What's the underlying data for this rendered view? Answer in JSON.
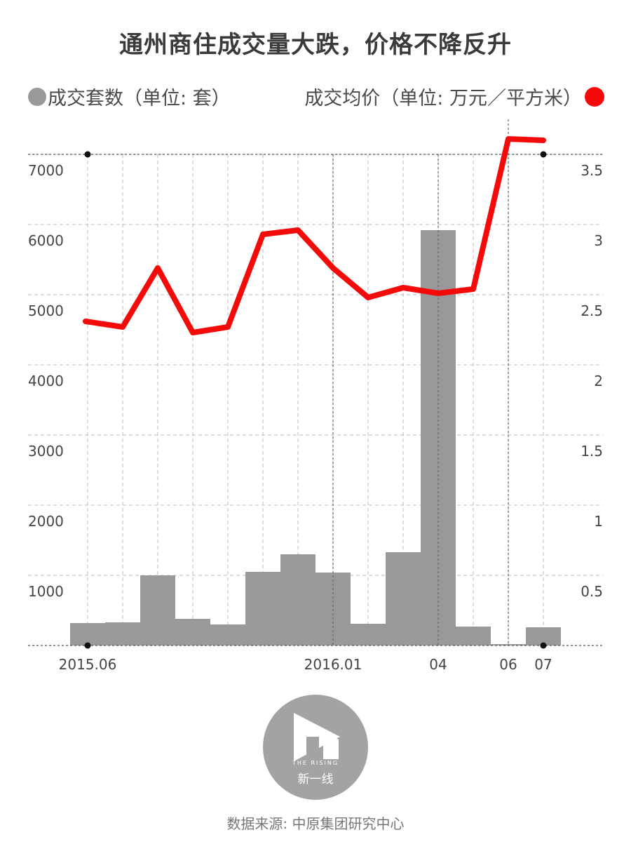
{
  "title": "通州商住成交量大跌，价格不降反升",
  "legend": {
    "left_label": "成交套数（单位: 套）",
    "right_label": "成交均价（单位: 万元／平方米）"
  },
  "colors": {
    "bar": "#999999",
    "line": "#f50a0a",
    "grid": "#bdbdbd"
  },
  "chart_data": {
    "type": "bar+line",
    "x_labels": [
      {
        "index": 0,
        "text": "2015.06"
      },
      {
        "index": 7,
        "text": "2016.01"
      },
      {
        "index": 10,
        "text": "04"
      },
      {
        "index": 12,
        "text": "06"
      },
      {
        "index": 13,
        "text": "07"
      }
    ],
    "y_left": {
      "min": 0,
      "max": 7000,
      "ticks": [
        1000,
        2000,
        3000,
        4000,
        5000,
        6000,
        7000
      ]
    },
    "y_right": {
      "min": 0,
      "max": 3.5,
      "ticks": [
        "0.5",
        "1",
        "1.5",
        "2",
        "2.5",
        "3",
        "3.5"
      ]
    },
    "bars": {
      "name": "成交套数",
      "values": [
        320,
        330,
        1000,
        380,
        300,
        1050,
        1300,
        1040,
        310,
        1330,
        5920,
        270,
        20,
        260
      ]
    },
    "line": {
      "name": "成交均价",
      "values": [
        2.31,
        2.27,
        2.69,
        2.23,
        2.27,
        2.93,
        2.96,
        2.69,
        2.48,
        2.55,
        2.51,
        2.54,
        3.61,
        3.6
      ]
    },
    "grid": "dashed"
  },
  "logo": {
    "en": "THE RISING",
    "cn": "新一线"
  },
  "source": "数据来源: 中原集团研究中心"
}
